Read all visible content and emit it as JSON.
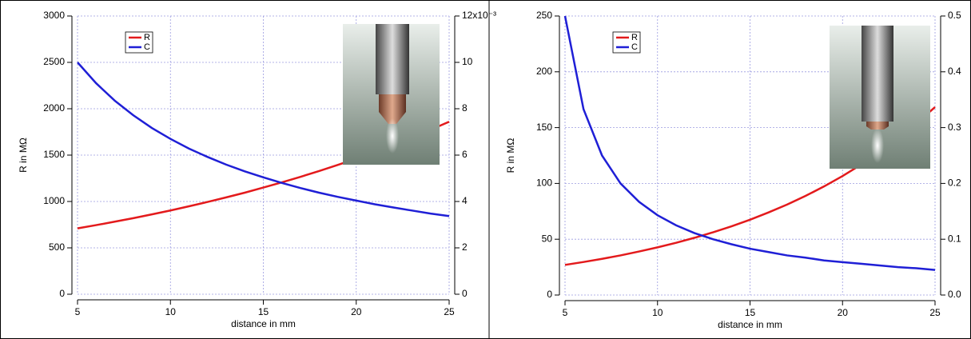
{
  "chart_data": [
    {
      "type": "line",
      "x": [
        5,
        6,
        7,
        8,
        9,
        10,
        11,
        12,
        13,
        14,
        15,
        16,
        17,
        18,
        19,
        20,
        21,
        22,
        23,
        24,
        25
      ],
      "xlabel": "distance in mm",
      "ylabel": "R in MΩ",
      "series": [
        {
          "name": "R",
          "color": "#e31a1c",
          "values": [
            710,
            745,
            782,
            820,
            861,
            903,
            948,
            995,
            1044,
            1095,
            1150,
            1206,
            1266,
            1328,
            1394,
            1462,
            1535,
            1610,
            1690,
            1773,
            1860
          ]
        },
        {
          "name": "C",
          "color": "#1f1fd6",
          "axis": "y2",
          "values": [
            10.0,
            9.1,
            8.35,
            7.72,
            7.17,
            6.7,
            6.28,
            5.92,
            5.59,
            5.3,
            5.04,
            4.8,
            4.58,
            4.38,
            4.2,
            4.04,
            3.88,
            3.74,
            3.61,
            3.48,
            3.37
          ]
        }
      ],
      "xlim": [
        5,
        25
      ],
      "xticks": [
        5,
        10,
        15,
        20,
        25
      ],
      "ylim": [
        0,
        3000
      ],
      "yticks": [
        0,
        500,
        1000,
        1500,
        2000,
        2500,
        3000
      ],
      "y2lim": [
        0,
        12
      ],
      "y2ticks": [
        0,
        2,
        4,
        6,
        8,
        10,
        {
          "value": 12,
          "label": "12x10⁻³"
        }
      ],
      "grid": true,
      "legend": "upper left"
    },
    {
      "type": "line",
      "x": [
        5,
        6,
        7,
        8,
        9,
        10,
        11,
        12,
        13,
        14,
        15,
        16,
        17,
        18,
        19,
        20,
        21,
        22,
        23,
        24,
        25
      ],
      "xlabel": "distance in mm",
      "ylabel": "R in MΩ",
      "series": [
        {
          "name": "R",
          "color": "#e31a1c",
          "values": [
            27,
            29.6,
            32.4,
            35.5,
            39,
            42.7,
            46.8,
            51.3,
            56.2,
            61.6,
            67.5,
            74,
            81,
            88.8,
            97.3,
            106.6,
            116.8,
            128,
            140.3,
            153.7,
            168.4
          ]
        },
        {
          "name": "C",
          "color": "#1f1fd6",
          "axis": "y2",
          "values": [
            0.5,
            0.333,
            0.25,
            0.2,
            0.167,
            0.143,
            0.125,
            0.111,
            0.1,
            0.091,
            0.083,
            0.077,
            0.071,
            0.067,
            0.062,
            0.059,
            0.056,
            0.053,
            0.05,
            0.048,
            0.045
          ]
        }
      ],
      "xlim": [
        5,
        25
      ],
      "xticks": [
        5,
        10,
        15,
        20,
        25
      ],
      "ylim": [
        0,
        250
      ],
      "yticks": [
        0,
        50,
        100,
        150,
        200,
        250
      ],
      "y2lim": [
        0,
        0.5
      ],
      "y2ticks": [
        {
          "value": 0,
          "label": "0.0"
        },
        0.1,
        0.2,
        0.3,
        0.4,
        0.5
      ],
      "grid": true,
      "legend": "upper left"
    }
  ]
}
